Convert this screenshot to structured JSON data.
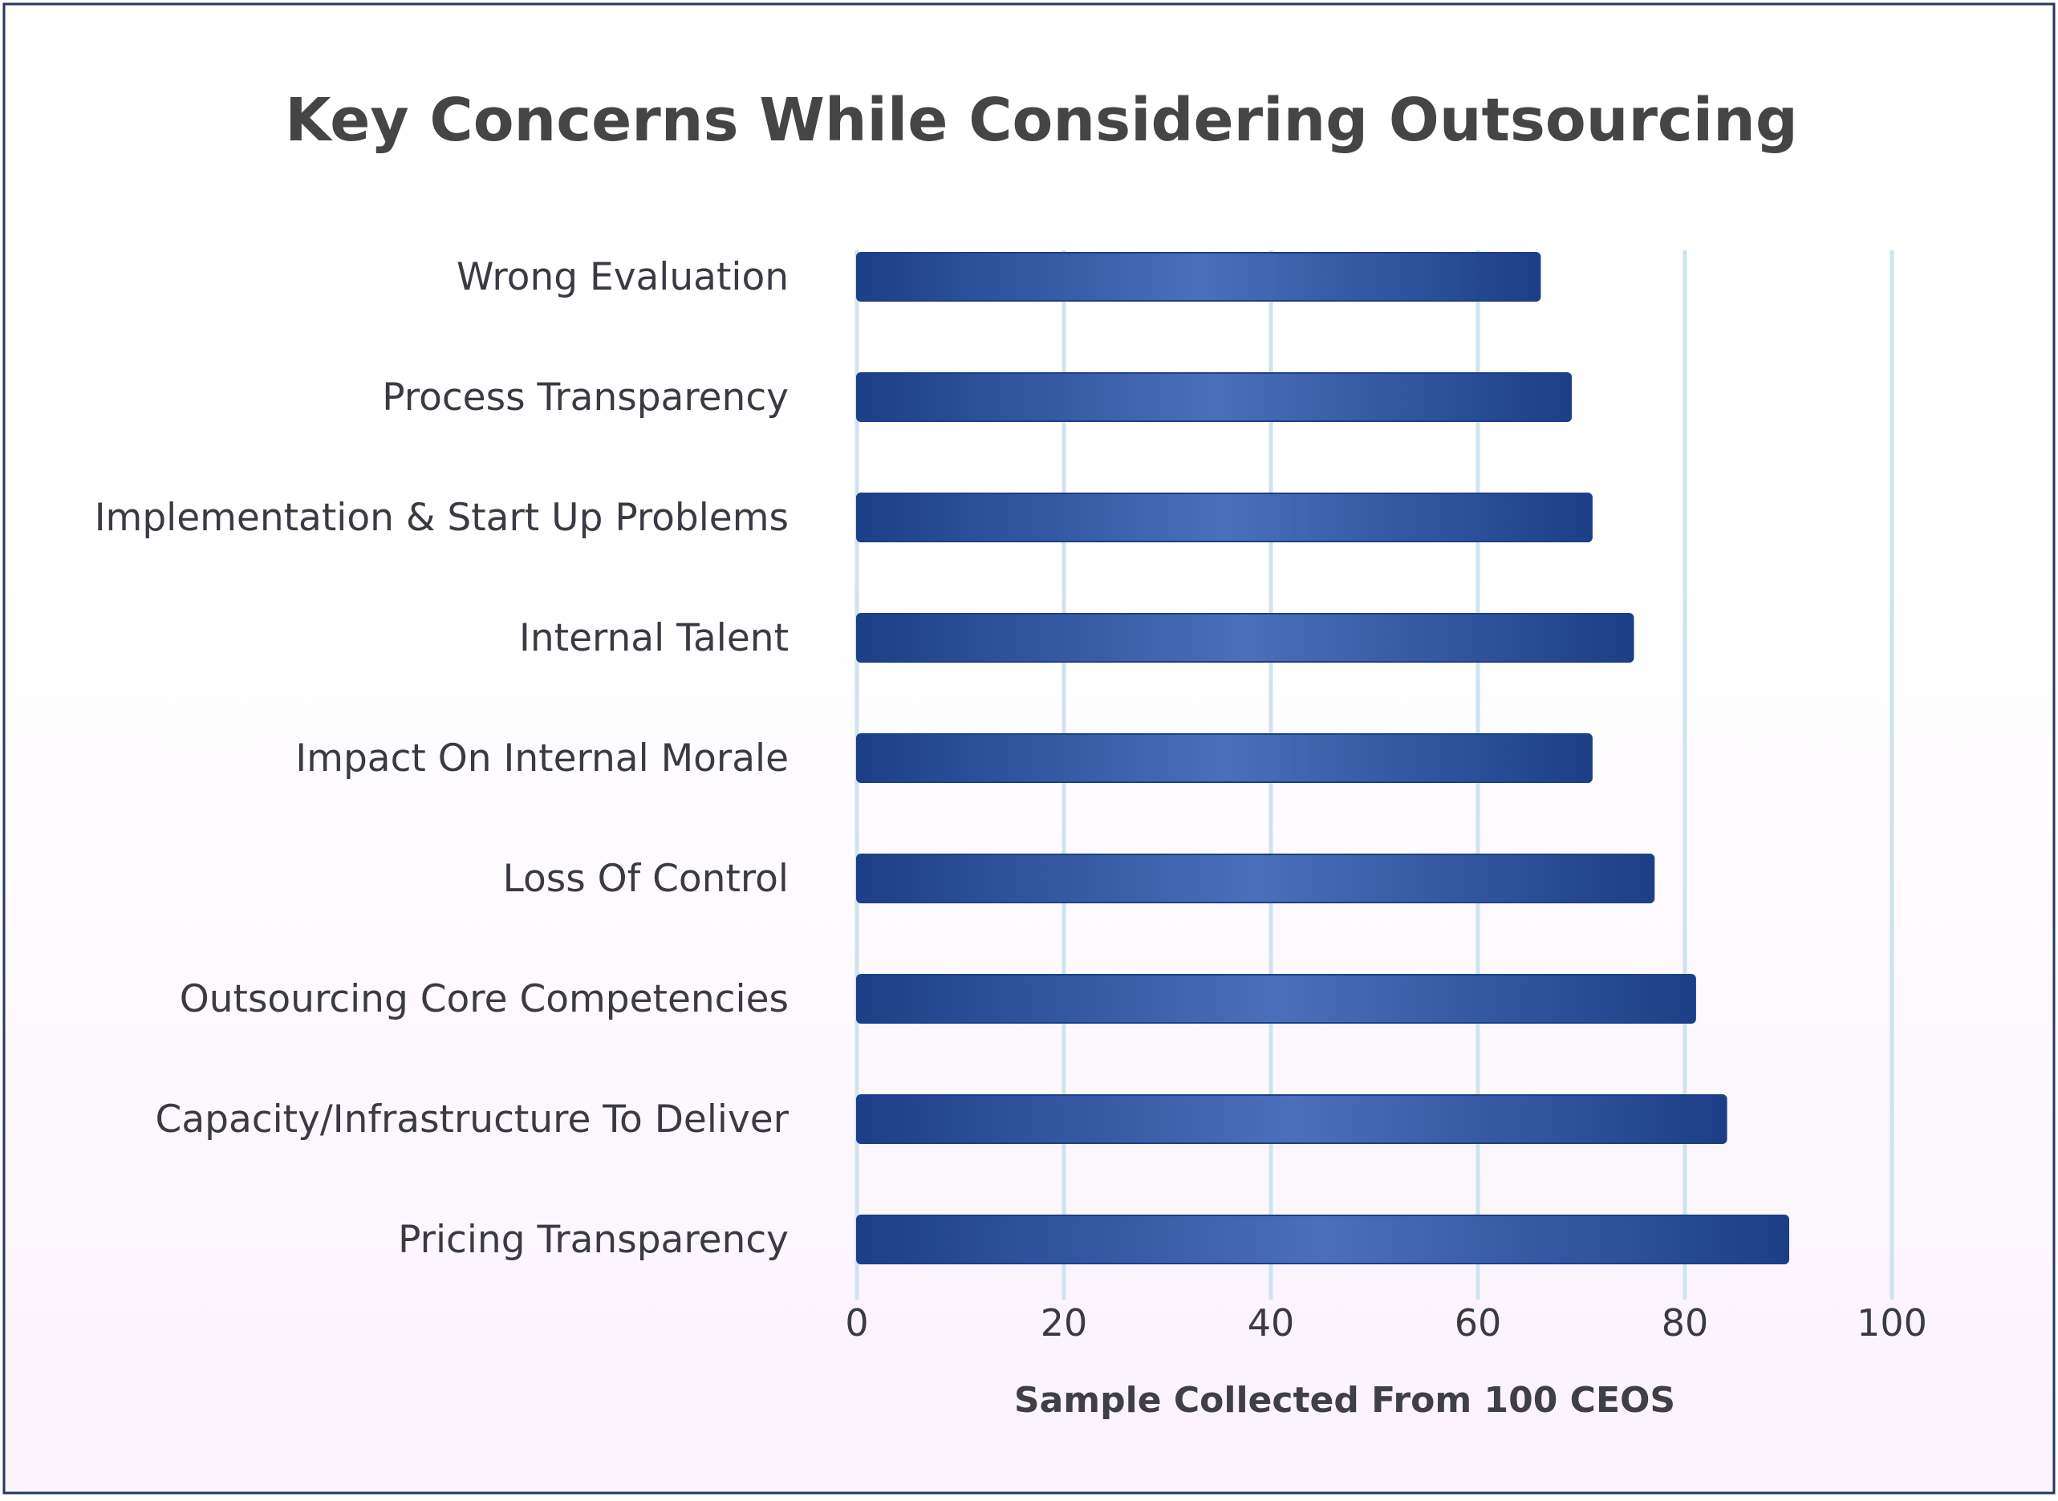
{
  "colors": {
    "bar_dark": "#1c3f87",
    "bar_light": "#4a70bb",
    "grid": "#cfe3ef",
    "border": "#24365e",
    "bg_top": "#ffffff",
    "bg_bottom": "#fbf2fc",
    "title": "#454545",
    "text": "#3a3a42"
  },
  "chart_data": {
    "type": "bar",
    "orientation": "horizontal",
    "title": "Key Concerns While Considering Outsourcing",
    "xlabel": "Sample Collected From 100 CEOS",
    "ylabel": "",
    "categories": [
      "Wrong Evaluation",
      "Process Transparency",
      "Implementation & Start Up Problems",
      "Internal Talent",
      "Impact On Internal Morale",
      "Loss Of Control",
      "Outsourcing Core Competencies",
      "Capacity/Infrastructure To Deliver",
      "Pricing Transparency"
    ],
    "values": [
      66,
      69,
      71,
      75,
      71,
      77,
      81,
      84,
      90
    ],
    "xlim": [
      0,
      100
    ],
    "xticks": [
      "0",
      "20",
      "40",
      "60",
      "80",
      "100"
    ],
    "grid": "vertical",
    "legend": "none"
  }
}
